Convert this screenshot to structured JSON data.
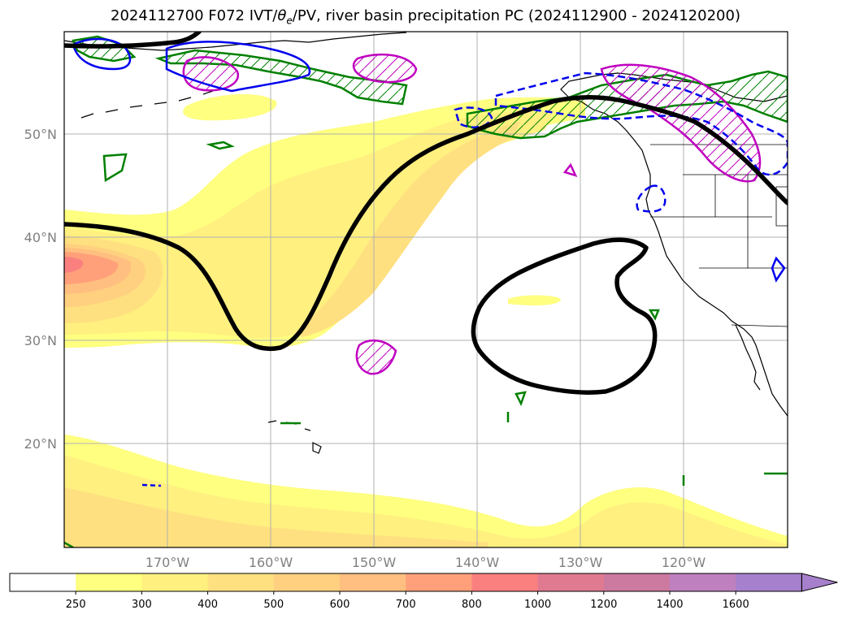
{
  "title": {
    "prefix": "2024112700 F072 IVT/",
    "theta": "θ",
    "theta_sub": "e",
    "suffix": "/PV, river basin precipitation PC (2024112900 - 2024120200)"
  },
  "map": {
    "lat_labels": [
      "50°N",
      "40°N",
      "30°N",
      "20°N"
    ],
    "lon_labels": [
      "170°W",
      "160°W",
      "150°W",
      "140°W",
      "130°W",
      "120°W"
    ],
    "lon_range": [
      -180,
      -110
    ],
    "lat_range": [
      10,
      60
    ],
    "layers": {
      "ivt_fill": "IVT",
      "theta_e_contour": "theta-e",
      "pv_contours": "PV",
      "precip_pc": "river basin precipitation PC"
    },
    "colors": {
      "contour_black": "#000000",
      "green_contour": "#008000",
      "blue_contour": "#0000ee",
      "magenta_contour": "#bf00bf",
      "coastline": "#000000"
    }
  },
  "colorbar": {
    "levels": [
      "250",
      "300",
      "400",
      "500",
      "600",
      "700",
      "800",
      "1000",
      "1200",
      "1400",
      "1600"
    ],
    "colors": [
      "#ffffff",
      "#ffff80",
      "#fff080",
      "#ffe080",
      "#ffd080",
      "#ffbf80",
      "#ffa07a",
      "#fa8080",
      "#e07a90",
      "#cc7aa0",
      "#bf80bf",
      "#a680cc"
    ],
    "extend": "max"
  }
}
